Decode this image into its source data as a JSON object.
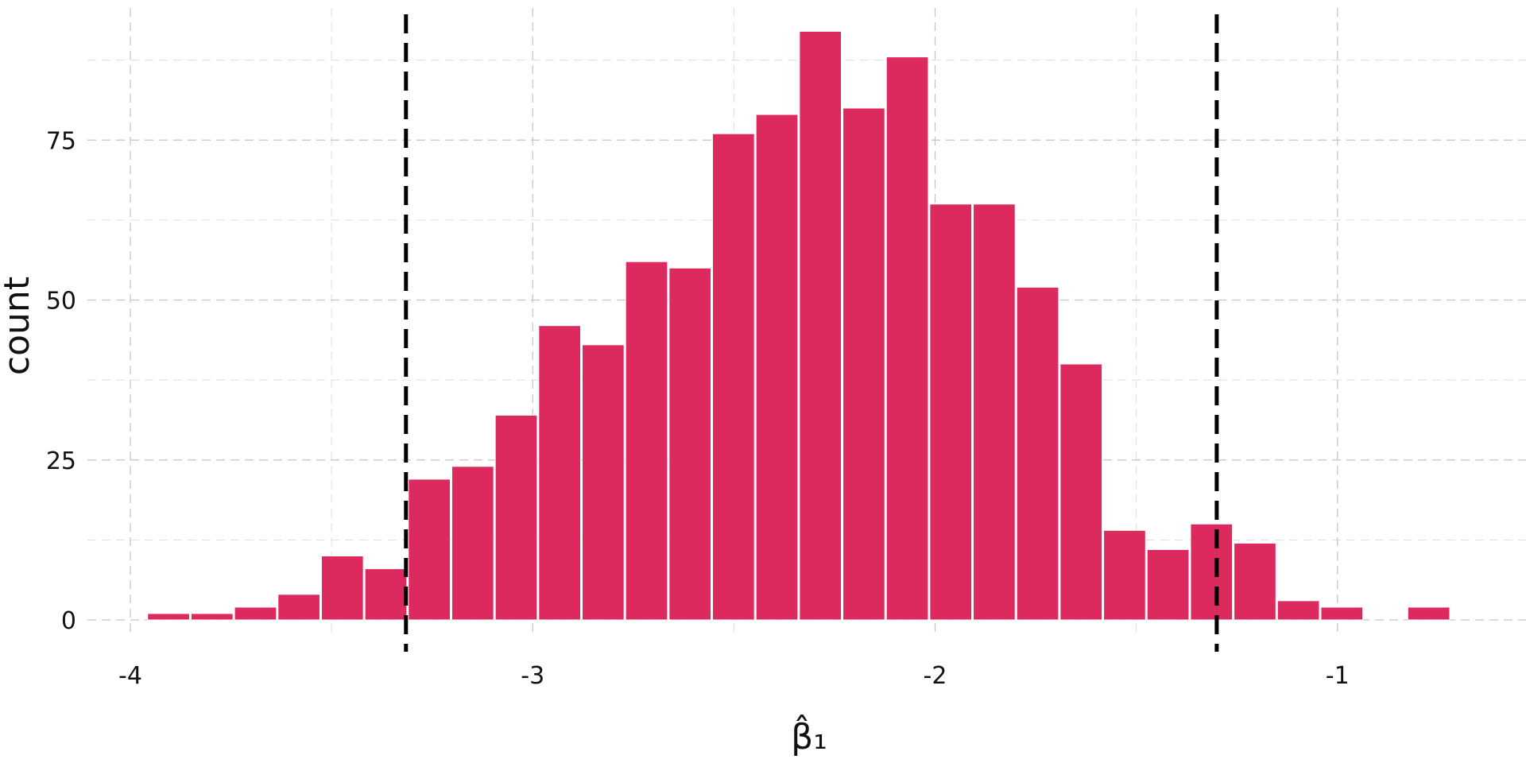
{
  "chart_data": {
    "type": "bar",
    "subtype": "histogram",
    "title": "",
    "xlabel": "β̂₁",
    "ylabel": "count",
    "xlim": [
      -4.05,
      -0.65
    ],
    "ylim": [
      0,
      98
    ],
    "x_ticks": [
      -4,
      -3,
      -2,
      -1
    ],
    "x_tick_labels": [
      "-4",
      "-3",
      "-2",
      "-1"
    ],
    "y_ticks": [
      0,
      25,
      50,
      75
    ],
    "y_tick_labels": [
      "0",
      "25",
      "50",
      "75"
    ],
    "x_minor_ticks": [
      -3.5,
      -2.5,
      -1.5
    ],
    "y_minor_ticks": [
      12.5,
      37.5,
      62.5,
      87.5
    ],
    "grid": true,
    "bin_width": 0.108,
    "bin_centers": [
      -3.905,
      -3.797,
      -3.689,
      -3.581,
      -3.473,
      -3.365,
      -3.257,
      -3.149,
      -3.041,
      -2.933,
      -2.825,
      -2.717,
      -2.609,
      -2.501,
      -2.393,
      -2.285,
      -2.177,
      -2.069,
      -1.961,
      -1.853,
      -1.745,
      -1.637,
      -1.529,
      -1.421,
      -1.313,
      -1.205,
      -1.097,
      -0.989,
      -0.881,
      -0.773
    ],
    "values": [
      1,
      1,
      2,
      4,
      10,
      8,
      22,
      24,
      32,
      46,
      43,
      56,
      55,
      76,
      79,
      92,
      80,
      88,
      65,
      65,
      52,
      40,
      14,
      11,
      15,
      12,
      3,
      2,
      0,
      2
    ],
    "reference_lines": [
      -3.315,
      -1.3
    ],
    "bar_color": "#DC2A5F",
    "reference_line_color": "#000000"
  }
}
